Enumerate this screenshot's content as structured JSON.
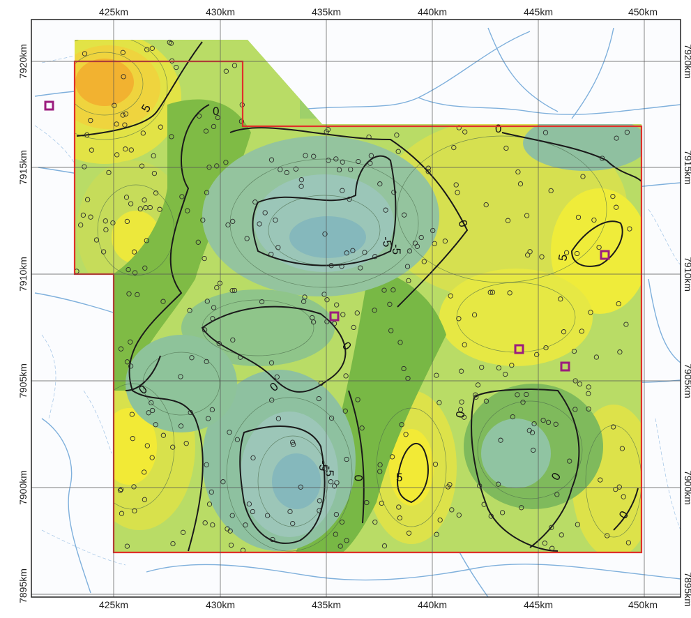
{
  "map": {
    "x_ticks_top": [
      "425km",
      "430km",
      "435km",
      "440km",
      "445km",
      "450km"
    ],
    "x_ticks_bottom": [
      "425km",
      "430km",
      "435km",
      "440km",
      "445km",
      "450km"
    ],
    "y_ticks_left": [
      "7920km",
      "7915km",
      "7910km",
      "7905km",
      "7900km",
      "7895km"
    ],
    "y_ticks_right": [
      "7920km",
      "7915km",
      "7910km",
      "7905km",
      "7900km",
      "7895km"
    ],
    "contour_labels": [
      "5",
      "0",
      "0",
      "-5",
      "0",
      "-5",
      "0",
      "0",
      "0",
      "-5",
      "-5",
      "0",
      "5",
      "0",
      "5",
      "0",
      "0"
    ],
    "colors": {
      "survey_outline": "#e0302a",
      "site_marker": "#9b1c7e",
      "river": "#6fa8dc",
      "grid": "#5a5a5a",
      "high_values": "#f0a020",
      "mid_values": "#e8e43a",
      "zero_band": "#6fae3a",
      "low_values": "#8fbfb0"
    },
    "legend_type": "none"
  }
}
